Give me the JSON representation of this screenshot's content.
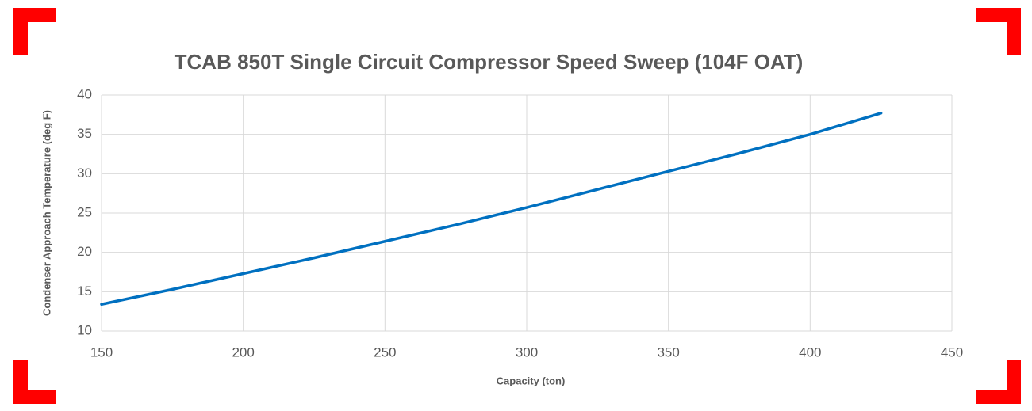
{
  "chart_data": {
    "type": "line",
    "title": "TCAB 850T Single Circuit Compressor Speed Sweep (104F OAT)",
    "x_label": "Capacity (ton)",
    "y_label": "Condenser Approach Temperature (deg F)",
    "x": [
      150,
      175,
      200,
      225,
      250,
      275,
      300,
      325,
      350,
      375,
      400,
      425
    ],
    "series": [
      {
        "name": "Condenser Approach Temperature",
        "color": "#0070c0",
        "values": [
          13.4,
          15.3,
          17.3,
          19.3,
          21.4,
          23.5,
          25.7,
          28.0,
          30.3,
          32.6,
          35.0,
          37.7
        ]
      }
    ],
    "xlim": [
      150,
      450
    ],
    "xticks": [
      150,
      200,
      250,
      300,
      350,
      400,
      450
    ],
    "ylim": [
      10,
      40
    ],
    "yticks": [
      10,
      15,
      20,
      25,
      30,
      35,
      40
    ],
    "grid": true
  }
}
